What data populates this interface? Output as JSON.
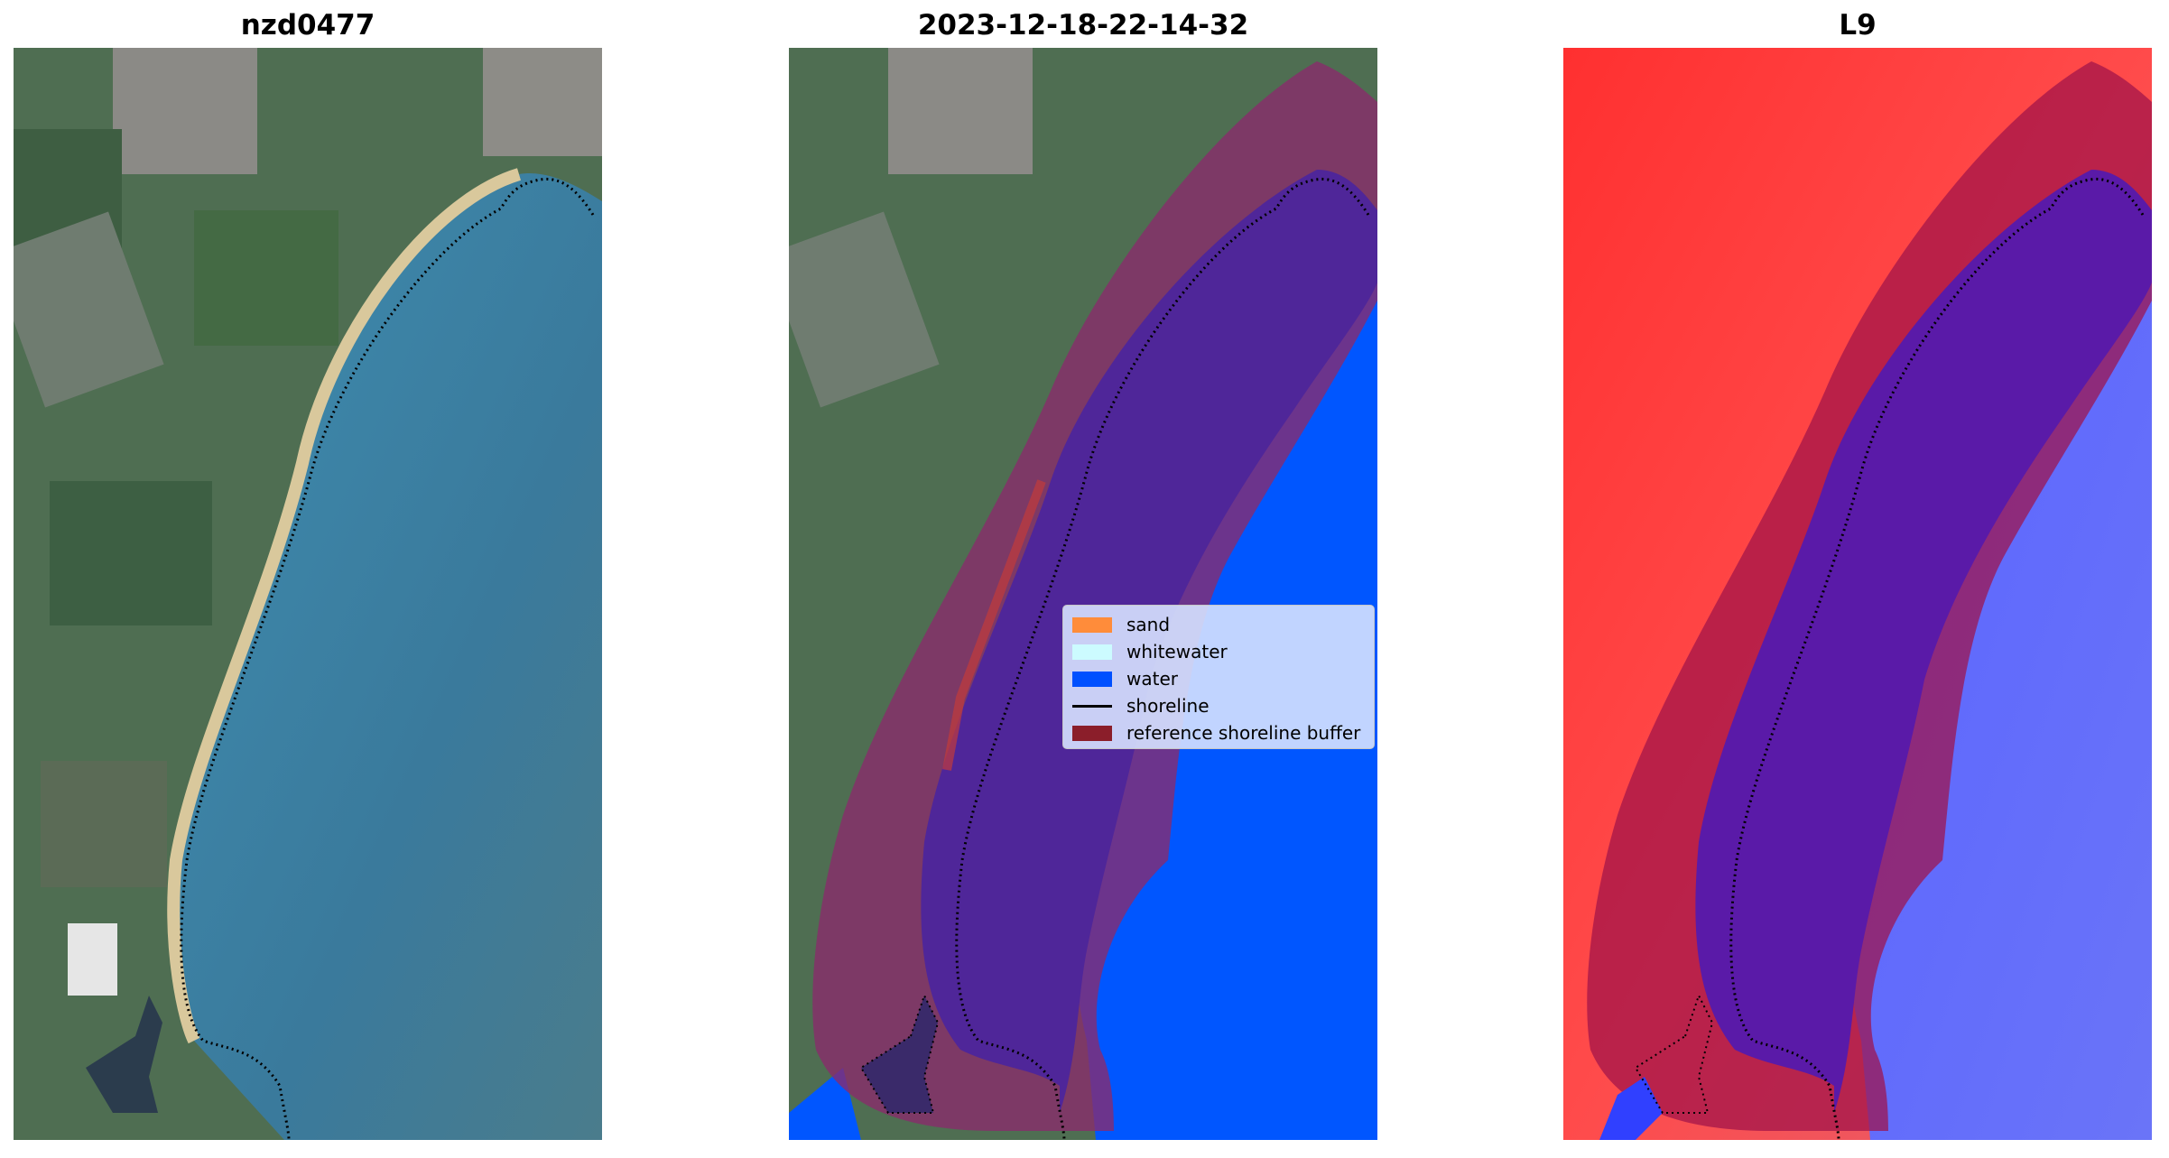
{
  "panels": [
    {
      "title": "nzd0477"
    },
    {
      "title": "2023-12-18-22-14-32"
    },
    {
      "title": "L9"
    }
  ],
  "legend": {
    "items": [
      {
        "label": "sand",
        "color": "#ff8c3a"
      },
      {
        "label": "whitewater",
        "color": "#ccfbff"
      },
      {
        "label": "water",
        "color": "#0050ff"
      },
      {
        "label": "shoreline",
        "color": "#000000"
      },
      {
        "label": "reference shoreline buffer",
        "color": "#8b1e2a"
      }
    ]
  },
  "colors": {
    "land": "#4a6a4e",
    "sea": "#3a7d9e",
    "beach": "#d9c89c",
    "classified_water": "#0056ff",
    "buffer": "#8e2f6a",
    "index_positive": "#ff2222",
    "index_negative": "#5566ff"
  }
}
